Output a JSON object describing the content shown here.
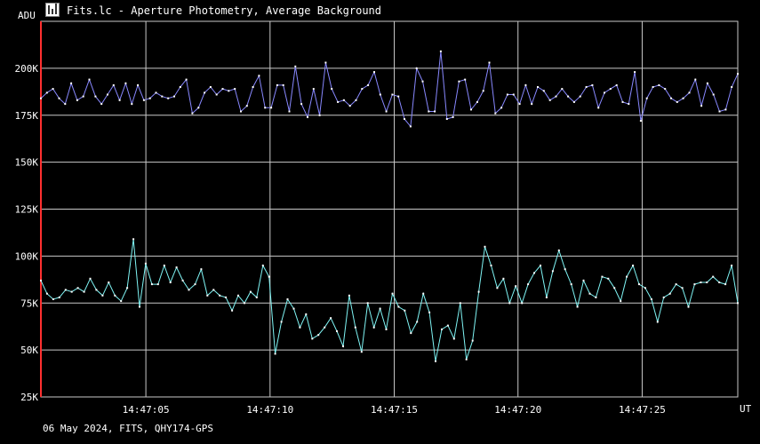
{
  "window": {
    "title": "Fits.lc - Aperture Photometry, Average Background",
    "icon": "lightcurve-app-icon"
  },
  "footer": {
    "text": "06 May 2024, FITS, QHY174-GPS"
  },
  "chart_data": {
    "type": "line",
    "title": "",
    "ylabel": "ADU",
    "xlabel": "UT",
    "ylim": [
      25000,
      225000
    ],
    "xlim": [
      0,
      156
    ],
    "yticks": [
      {
        "value": 25000,
        "label": "25K"
      },
      {
        "value": 50000,
        "label": "50K"
      },
      {
        "value": 75000,
        "label": "75K"
      },
      {
        "value": 100000,
        "label": "100K"
      },
      {
        "value": 125000,
        "label": "125K"
      },
      {
        "value": 150000,
        "label": "150K"
      },
      {
        "value": 175000,
        "label": "175K"
      },
      {
        "value": 200000,
        "label": "200K"
      }
    ],
    "xticks": [
      {
        "value": 23.5,
        "label": "14:47:05"
      },
      {
        "value": 51.3,
        "label": "14:47:10"
      },
      {
        "value": 79.1,
        "label": "14:47:15"
      },
      {
        "value": 106.8,
        "label": "14:47:20"
      },
      {
        "value": 134.6,
        "label": "14:47:25"
      }
    ],
    "grid": true,
    "colors": {
      "axis": "#ff3030",
      "grid": "#c8c8c8",
      "series1": "#8888ff",
      "series2": "#7ff5f5"
    },
    "series": [
      {
        "values": [
          184000,
          187000,
          189000,
          184000,
          181000,
          192000,
          183000,
          185000,
          194000,
          185000,
          181000,
          186000,
          191000,
          183000,
          192000,
          181000,
          191000,
          183000,
          184000,
          187000,
          185000,
          184000,
          185000,
          190000,
          194000,
          176000,
          179000,
          187000,
          190000,
          186000,
          189000,
          188000,
          189000,
          177000,
          180000,
          190000,
          196000,
          179000,
          179000,
          191000,
          191000,
          177000,
          201000,
          181000,
          174000,
          189000,
          175000,
          203000,
          189000,
          182000,
          183000,
          180000,
          183000,
          189000,
          191000,
          198000,
          186000,
          177000,
          186000,
          185000,
          173000,
          169000,
          200000,
          193000,
          177000,
          177000,
          209000,
          173000,
          174000,
          193000,
          194000,
          178000,
          182000,
          188000,
          203000,
          176000,
          179000,
          186000,
          186000,
          181000,
          191000,
          181000,
          190000,
          188000,
          183000,
          185000,
          189000,
          185000,
          182000,
          185000,
          190000,
          191000,
          179000,
          187000,
          189000,
          191000,
          182000,
          181000,
          198000,
          172000,
          184000,
          190000,
          191000,
          189000,
          184000,
          182000,
          184000,
          187000,
          194000,
          180000,
          192000,
          186000,
          177000,
          178000,
          190000,
          197000
        ]
      },
      {
        "values": [
          87000,
          80000,
          77000,
          78000,
          82000,
          81000,
          83000,
          81000,
          88000,
          82000,
          79000,
          86000,
          79000,
          76000,
          83000,
          109000,
          73000,
          96000,
          85000,
          85000,
          95000,
          86000,
          94000,
          87000,
          82000,
          85000,
          93000,
          79000,
          82000,
          79000,
          78000,
          71000,
          79000,
          75000,
          81000,
          78000,
          95000,
          89000,
          48000,
          65000,
          77000,
          72000,
          62000,
          69000,
          56000,
          58000,
          62000,
          67000,
          60000,
          52000,
          79000,
          62000,
          49000,
          75000,
          62000,
          72000,
          61000,
          80000,
          73000,
          71000,
          59000,
          65000,
          80000,
          70000,
          44000,
          61000,
          63000,
          56000,
          75000,
          45000,
          55000,
          81000,
          105000,
          95000,
          83000,
          88000,
          75000,
          84000,
          75000,
          85000,
          91000,
          95000,
          78000,
          92000,
          103000,
          93000,
          85000,
          73000,
          87000,
          80000,
          78000,
          89000,
          88000,
          83000,
          76000,
          89000,
          95000,
          85000,
          83000,
          77000,
          65000,
          78000,
          80000,
          85000,
          83000,
          73000,
          85000,
          86000,
          86000,
          89000,
          86000,
          85000,
          95000,
          75000
        ]
      }
    ]
  }
}
